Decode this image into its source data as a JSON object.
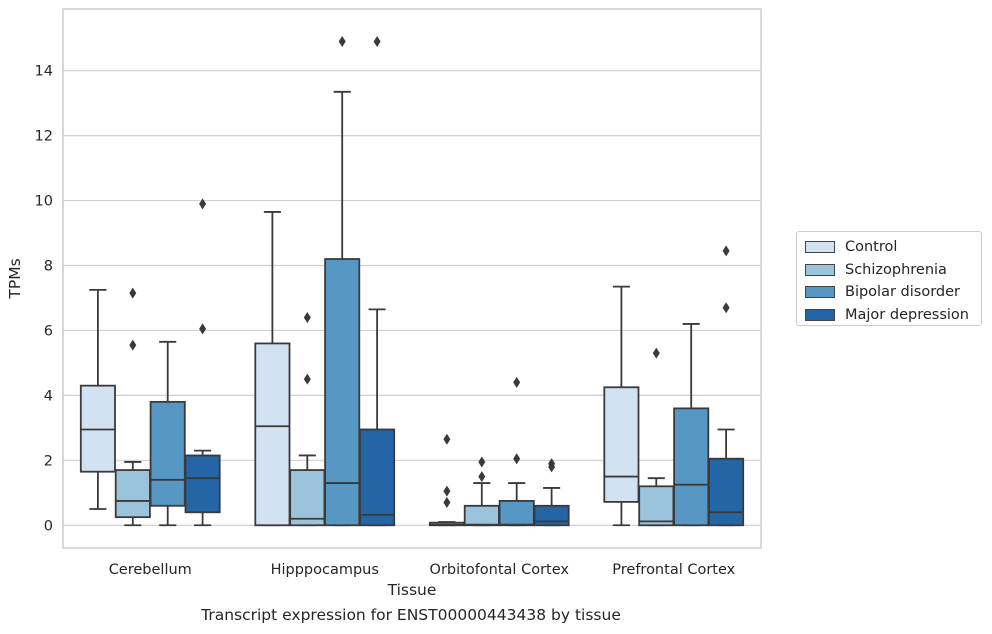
{
  "caption": "Transcript expression for ENST00000443438 by tissue",
  "chart_data": {
    "type": "boxplot",
    "xlabel": "Tissue",
    "ylabel": "TPMs",
    "ylim": [
      -0.7,
      15.9
    ],
    "yticks": [
      0,
      2,
      4,
      6,
      8,
      10,
      12,
      14
    ],
    "grid": "horizontal",
    "legend_position": "right",
    "categories": [
      "Cerebellum",
      "Hipppocampus",
      "Orbitofontal Cortex",
      "Prefrontal Cortex"
    ],
    "series": [
      {
        "name": "Control",
        "color": "#d2e2f2",
        "boxes": [
          {
            "whislo": 0.5,
            "q1": 1.65,
            "med": 2.95,
            "q3": 4.3,
            "whishi": 7.25,
            "fliers": []
          },
          {
            "whislo": 0.0,
            "q1": 0.0,
            "med": 3.05,
            "q3": 5.6,
            "whishi": 9.65,
            "fliers": []
          },
          {
            "whislo": 0.0,
            "q1": 0.0,
            "med": 0.02,
            "q3": 0.08,
            "whishi": 0.1,
            "fliers": [
              0.7,
              1.05,
              2.65
            ]
          },
          {
            "whislo": 0.0,
            "q1": 0.72,
            "med": 1.5,
            "q3": 4.25,
            "whishi": 7.35,
            "fliers": []
          }
        ]
      },
      {
        "name": "Schizophrenia",
        "color": "#9cc3dc",
        "boxes": [
          {
            "whislo": 0.0,
            "q1": 0.25,
            "med": 0.75,
            "q3": 1.7,
            "whishi": 1.95,
            "fliers": [
              5.55,
              7.15
            ]
          },
          {
            "whislo": 0.0,
            "q1": 0.0,
            "med": 0.2,
            "q3": 1.7,
            "whishi": 2.15,
            "fliers": [
              4.5,
              6.4
            ]
          },
          {
            "whislo": 0.0,
            "q1": 0.0,
            "med": 0.02,
            "q3": 0.6,
            "whishi": 1.3,
            "fliers": [
              1.5,
              1.95
            ]
          },
          {
            "whislo": 0.0,
            "q1": 0.0,
            "med": 0.12,
            "q3": 1.2,
            "whishi": 1.45,
            "fliers": [
              5.3
            ]
          }
        ]
      },
      {
        "name": "Bipolar disorder",
        "color": "#5698c3",
        "boxes": [
          {
            "whislo": 0.0,
            "q1": 0.6,
            "med": 1.4,
            "q3": 3.8,
            "whishi": 5.65,
            "fliers": []
          },
          {
            "whislo": 0.0,
            "q1": 0.0,
            "med": 1.3,
            "q3": 8.2,
            "whishi": 13.35,
            "fliers": [
              14.9
            ]
          },
          {
            "whislo": 0.0,
            "q1": 0.0,
            "med": 0.02,
            "q3": 0.75,
            "whishi": 1.3,
            "fliers": [
              2.05,
              4.4
            ]
          },
          {
            "whislo": 0.0,
            "q1": 0.0,
            "med": 1.25,
            "q3": 3.6,
            "whishi": 6.2,
            "fliers": []
          }
        ]
      },
      {
        "name": "Major depression",
        "color": "#2465a6",
        "boxes": [
          {
            "whislo": 0.0,
            "q1": 0.4,
            "med": 1.45,
            "q3": 2.15,
            "whishi": 2.3,
            "fliers": [
              6.05,
              9.9
            ]
          },
          {
            "whislo": 0.0,
            "q1": 0.0,
            "med": 0.32,
            "q3": 2.95,
            "whishi": 6.65,
            "fliers": [
              14.9
            ]
          },
          {
            "whislo": 0.0,
            "q1": 0.0,
            "med": 0.12,
            "q3": 0.6,
            "whishi": 1.15,
            "fliers": [
              1.8,
              1.9
            ]
          },
          {
            "whislo": 0.0,
            "q1": 0.0,
            "med": 0.4,
            "q3": 2.05,
            "whishi": 2.95,
            "fliers": [
              6.7,
              8.45
            ]
          }
        ]
      }
    ]
  }
}
